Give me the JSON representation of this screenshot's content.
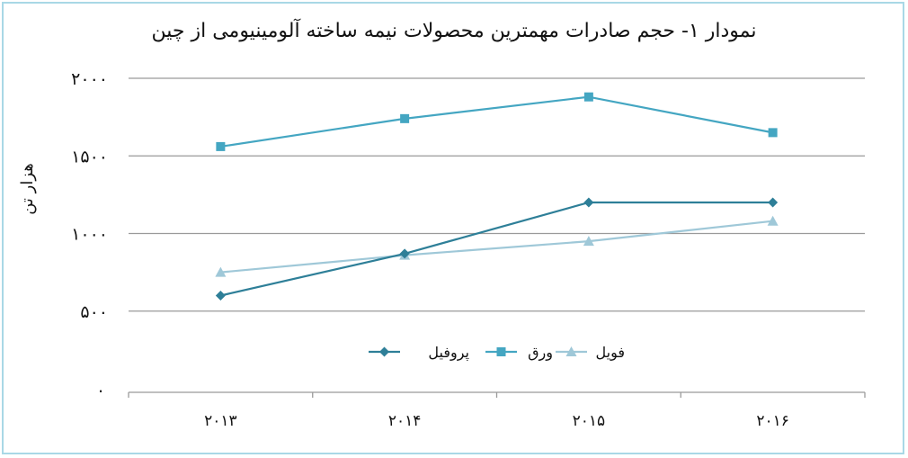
{
  "chart_data": {
    "type": "line",
    "title": "نمودار ۱- حجم صادرات مهمترین محصولات نیمه ساخته آلومینیومی از چین",
    "ylabel": "هزار تن",
    "xlabel": "",
    "categories": [
      "2013",
      "2014",
      "2015",
      "2016"
    ],
    "category_labels": [
      "۲۰۱۳",
      "۲۰۱۴",
      "۲۰۱۵",
      "۲۰۱۶"
    ],
    "ylim": [
      0,
      2000
    ],
    "yticks": [
      500,
      1000,
      1500,
      2000
    ],
    "ytick_labels": [
      "۵۰۰",
      "۱۰۰۰",
      "۱۵۰۰",
      "۲۰۰۰"
    ],
    "zero_label": ".",
    "grid": true,
    "legend_position": "bottom-center",
    "series": [
      {
        "name": "پروفیل",
        "values": [
          600,
          870,
          1200,
          1200
        ],
        "color": "#2e7f98",
        "marker": "diamond"
      },
      {
        "name": "ورق",
        "values": [
          1560,
          1740,
          1880,
          1650
        ],
        "color": "#44a6c2",
        "marker": "square"
      },
      {
        "name": "فویل",
        "values": [
          750,
          860,
          950,
          1080
        ],
        "color": "#9fc8d8",
        "marker": "triangle"
      }
    ]
  }
}
